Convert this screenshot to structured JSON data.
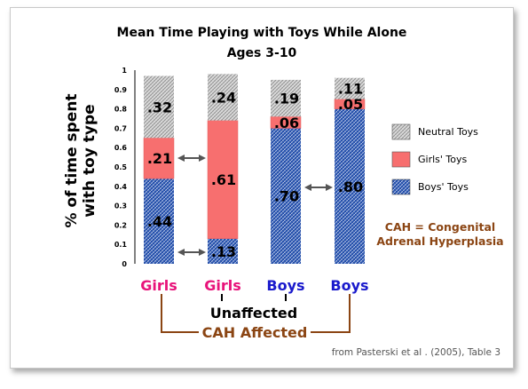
{
  "chart_data": {
    "type": "bar",
    "stacked": true,
    "title": "Mean Time Playing with Toys While Alone",
    "subtitle": "Ages 3-10",
    "ylabel": "% of time spent with toy type",
    "ylim": [
      0,
      1
    ],
    "yticks": [
      "0",
      "0.1",
      "0.2",
      "0.3",
      "0.4",
      "0.5",
      "0.6",
      "0.7",
      "0.8",
      "0.9",
      "1"
    ],
    "categories": [
      "Girls",
      "Girls",
      "Boys",
      "Boys"
    ],
    "category_colors": [
      "#e8137a",
      "#e8137a",
      "#1a1acc",
      "#1a1acc"
    ],
    "series": [
      {
        "name": "Boys' Toys",
        "color": "#1f4fb0",
        "pattern": "hatch-blue",
        "values": [
          0.44,
          0.13,
          0.7,
          0.8
        ],
        "labels": [
          ".44",
          ".13",
          ".70",
          ".80"
        ]
      },
      {
        "name": "Girls' Toys",
        "color": "#f76f6f",
        "pattern": "solid",
        "values": [
          0.21,
          0.61,
          0.06,
          0.05
        ],
        "labels": [
          ".21",
          ".61",
          ".06",
          ".05"
        ]
      },
      {
        "name": "Neutral Toys",
        "color": "#bdbdbd",
        "pattern": "hatch-gray",
        "values": [
          0.32,
          0.24,
          0.19,
          0.11
        ],
        "labels": [
          ".32",
          ".24",
          ".19",
          ".11"
        ]
      }
    ],
    "legend_order": [
      "Neutral Toys",
      "Girls' Toys",
      "Boys' Toys"
    ],
    "legend_position": "right",
    "grid": false
  },
  "annotations": {
    "cah_note_line1": "CAH = Congenital",
    "cah_note_line2": "Adrenal Hyperplasia",
    "cah_note_color": "#8b4513",
    "unaffected_label": "Unaffected",
    "cah_affected_label": "CAH Affected",
    "source": "from Pasterski et al . (2005), Table 3"
  }
}
